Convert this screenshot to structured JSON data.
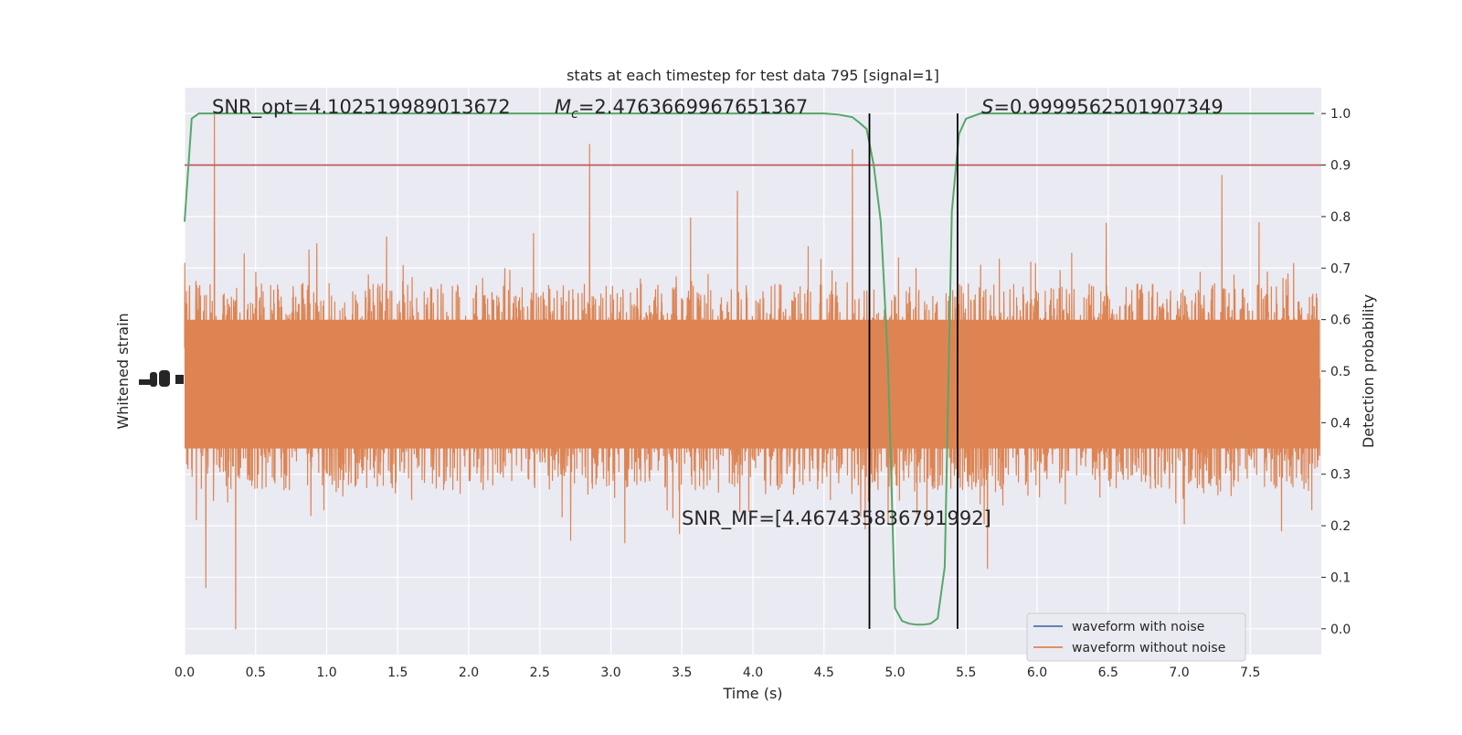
{
  "chart_data": {
    "type": "line",
    "title": "stats at each timestep for test data 795 [signal=1]",
    "xlabel": "Time (s)",
    "ylabel_left": "Whitened strain",
    "ylabel_right": "Detection probability",
    "xlim": [
      0.0,
      8.0
    ],
    "ylim_right": [
      -0.05,
      1.05
    ],
    "x_ticks": [
      "0.0",
      "0.5",
      "1.0",
      "1.5",
      "2.0",
      "2.5",
      "3.0",
      "3.5",
      "4.0",
      "4.5",
      "5.0",
      "5.5",
      "6.0",
      "6.5",
      "7.0",
      "7.5"
    ],
    "y_ticks_right": [
      "0.0",
      "0.1",
      "0.2",
      "0.3",
      "0.4",
      "0.5",
      "0.6",
      "0.7",
      "0.8",
      "0.9",
      "1.0"
    ],
    "grid": true,
    "threshold": 0.9,
    "detection_window": [
      4.82,
      5.44
    ],
    "detection_probability": {
      "x": [
        0.0,
        0.05,
        0.1,
        0.2,
        0.5,
        1.0,
        2.0,
        3.0,
        4.0,
        4.5,
        4.6,
        4.7,
        4.75,
        4.8,
        4.85,
        4.9,
        4.95,
        5.0,
        5.05,
        5.1,
        5.15,
        5.2,
        5.25,
        5.3,
        5.35,
        5.4,
        5.45,
        5.5,
        5.55,
        5.6,
        6.0,
        7.0,
        7.95
      ],
      "y": [
        0.79,
        0.99,
        1.0,
        1.0,
        1.0,
        1.0,
        1.0,
        1.0,
        1.0,
        1.0,
        0.998,
        0.993,
        0.982,
        0.97,
        0.9,
        0.79,
        0.52,
        0.04,
        0.015,
        0.01,
        0.008,
        0.008,
        0.01,
        0.02,
        0.12,
        0.81,
        0.96,
        0.99,
        0.995,
        1.0,
        1.0,
        1.0,
        1.0
      ]
    },
    "noise_strain": {
      "seed": 795,
      "band_center_prob": 0.47,
      "band_half_width": 0.16,
      "spike_max": 1.0,
      "spike_min": 0.0,
      "notable_spikes": [
        [
          0.21,
          1.0
        ],
        [
          0.36,
          0.0
        ],
        [
          2.85,
          0.94
        ],
        [
          4.7,
          0.93
        ],
        [
          7.3,
          0.88
        ],
        [
          0.15,
          0.08
        ]
      ]
    },
    "annotations": {
      "snr_opt": "SNR_opt=4.102519989013672",
      "mc_symbol": "M",
      "mc_sub": "c",
      "mc_value": "=2.4763669967651367",
      "s_symbol": "S",
      "s_value": "=0.9999562501907349",
      "snr_mf": "SNR_MF=[4.467435836791992]"
    },
    "legend": {
      "position": "lower-right",
      "entries": [
        "waveform with noise",
        "waveform without noise"
      ]
    },
    "colors": {
      "background": "#eaeaf2",
      "grid": "#ffffff",
      "noise": "#dd8452",
      "noise_free": "#4c72b0",
      "probability": "#55a868",
      "threshold": "#c44e52",
      "vline": "#000000"
    }
  }
}
